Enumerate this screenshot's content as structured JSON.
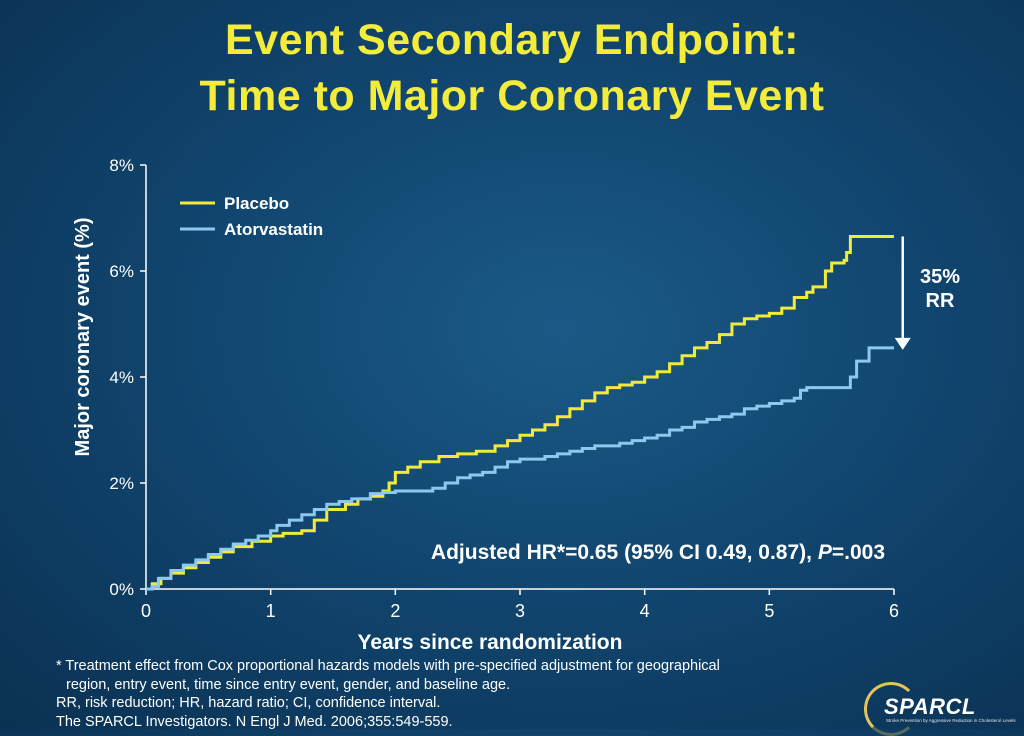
{
  "slide": {
    "title_line1": "Event Secondary Endpoint:",
    "title_line2": "Time to Major Coronary Event",
    "footnotes": [
      "* Treatment effect from Cox proportional hazards models with pre-specified adjustment for geographical",
      "region, entry event, time since entry event, gender, and baseline age.",
      "RR,  risk reduction; HR, hazard ratio; CI, confidence interval.",
      "The SPARCL Investigators. N Engl J Med. 2006;355:549-559."
    ],
    "logo": {
      "name": "SPARCL",
      "tagline": "Stroke Prevention by Aggressive Reduction in Cholesterol Levels"
    }
  },
  "chart_data": {
    "type": "line",
    "title": "",
    "xlabel": "Years since randomization",
    "ylabel": "Major coronary event (%)",
    "xlim": [
      0,
      6
    ],
    "ylim": [
      0,
      8
    ],
    "x_ticks": [
      0,
      1,
      2,
      3,
      4,
      5,
      6
    ],
    "y_ticks": [
      0,
      2,
      4,
      6,
      8
    ],
    "y_tick_labels": [
      "0%",
      "2%",
      "4%",
      "6%",
      "8%"
    ],
    "grid": false,
    "legend_position": "top-left",
    "step": true,
    "series": [
      {
        "name": "Placebo",
        "color": "#f2ea3a",
        "x": [
          0,
          0.05,
          0.12,
          0.2,
          0.3,
          0.4,
          0.5,
          0.6,
          0.7,
          0.85,
          1.0,
          1.1,
          1.25,
          1.35,
          1.45,
          1.6,
          1.7,
          1.8,
          1.9,
          1.95,
          2.0,
          2.1,
          2.2,
          2.35,
          2.5,
          2.65,
          2.8,
          2.9,
          3.0,
          3.1,
          3.2,
          3.3,
          3.4,
          3.5,
          3.6,
          3.7,
          3.8,
          3.9,
          4.0,
          4.1,
          4.2,
          4.3,
          4.4,
          4.5,
          4.6,
          4.7,
          4.8,
          4.9,
          5.0,
          5.1,
          5.2,
          5.3,
          5.35,
          5.45,
          5.5,
          5.6,
          5.62,
          5.65,
          5.8,
          6.0
        ],
        "values": [
          0,
          0.1,
          0.2,
          0.3,
          0.4,
          0.5,
          0.6,
          0.7,
          0.8,
          0.9,
          1.0,
          1.05,
          1.1,
          1.3,
          1.5,
          1.6,
          1.7,
          1.75,
          1.85,
          2.0,
          2.2,
          2.3,
          2.4,
          2.5,
          2.55,
          2.6,
          2.7,
          2.8,
          2.9,
          3.0,
          3.1,
          3.25,
          3.4,
          3.55,
          3.7,
          3.8,
          3.85,
          3.9,
          4.0,
          4.1,
          4.25,
          4.4,
          4.55,
          4.65,
          4.8,
          5.0,
          5.1,
          5.15,
          5.2,
          5.3,
          5.5,
          5.6,
          5.7,
          6.0,
          6.15,
          6.2,
          6.35,
          6.65,
          6.65,
          6.65
        ]
      },
      {
        "name": "Atorvastatin",
        "color": "#8cc8f0",
        "x": [
          0,
          0.05,
          0.1,
          0.2,
          0.3,
          0.4,
          0.5,
          0.6,
          0.7,
          0.8,
          0.9,
          1.0,
          1.05,
          1.15,
          1.25,
          1.35,
          1.45,
          1.55,
          1.65,
          1.8,
          1.9,
          2.0,
          2.1,
          2.2,
          2.3,
          2.4,
          2.5,
          2.6,
          2.7,
          2.8,
          2.9,
          3.0,
          3.1,
          3.2,
          3.3,
          3.4,
          3.5,
          3.6,
          3.7,
          3.8,
          3.9,
          4.0,
          4.1,
          4.2,
          4.3,
          4.4,
          4.5,
          4.6,
          4.7,
          4.8,
          4.9,
          5.0,
          5.1,
          5.2,
          5.25,
          5.3,
          5.5,
          5.6,
          5.65,
          5.7,
          5.8,
          6.0
        ],
        "values": [
          0,
          0.05,
          0.2,
          0.35,
          0.45,
          0.55,
          0.65,
          0.75,
          0.85,
          0.92,
          1.0,
          1.1,
          1.2,
          1.3,
          1.4,
          1.5,
          1.6,
          1.65,
          1.7,
          1.8,
          1.82,
          1.85,
          1.85,
          1.85,
          1.9,
          2.0,
          2.1,
          2.15,
          2.2,
          2.3,
          2.4,
          2.45,
          2.45,
          2.5,
          2.55,
          2.6,
          2.65,
          2.7,
          2.7,
          2.75,
          2.8,
          2.85,
          2.9,
          3.0,
          3.05,
          3.15,
          3.2,
          3.25,
          3.3,
          3.4,
          3.45,
          3.5,
          3.55,
          3.6,
          3.75,
          3.8,
          3.8,
          3.8,
          4.0,
          4.3,
          4.55,
          4.55
        ]
      }
    ],
    "annotations": {
      "hr_text": "Adjusted HR*=0.65 (95% CI 0.49, 0.87), P=.003",
      "hr_prefix": "Adjusted HR*=0.65 (95% CI 0.49, 0.87), ",
      "hr_p": "P",
      "hr_suffix": "=.003",
      "rr_line1": "35%",
      "rr_line2": "RR",
      "rr_arrow_from": 6.65,
      "rr_arrow_to": 4.55,
      "rr_arrow_x": 6.07
    }
  }
}
